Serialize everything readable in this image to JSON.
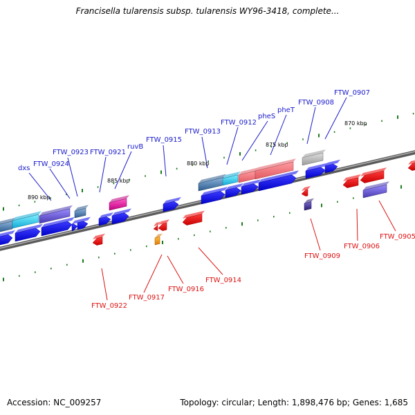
{
  "title": "Francisella tularensis subsp. tularensis WY96-3418, complete...",
  "footer": {
    "accession": "Accession: NC_009257",
    "summary": "Topology: circular; Length: 1,898,476 bp; Genes: 1,685"
  },
  "kbp_labels": [
    "890 kbp",
    "885 kbp",
    "880 kbp",
    "875 kbp",
    "870 kbp"
  ],
  "gene_labels_forward": [
    "dxs",
    "FTW_0924",
    "FTW_0923",
    "FTW_0921",
    "ruvB",
    "FTW_0915",
    "FTW_0913",
    "FTW_0912",
    "pheS",
    "pheT",
    "FTW_0908",
    "FTW_0907"
  ],
  "gene_labels_reverse": [
    "FTW_0922",
    "FTW_0917",
    "FTW_0916",
    "FTW_0914",
    "FTW_0909",
    "FTW_0906",
    "FTW_0905"
  ],
  "colors": {
    "forward_label": "#1a1acc",
    "reverse_label": "#dd1111",
    "cds_forward": "#0000ee",
    "cds_reverse": "#ee0000",
    "backbone": "#777777",
    "tick": "#1a7a1a"
  }
}
